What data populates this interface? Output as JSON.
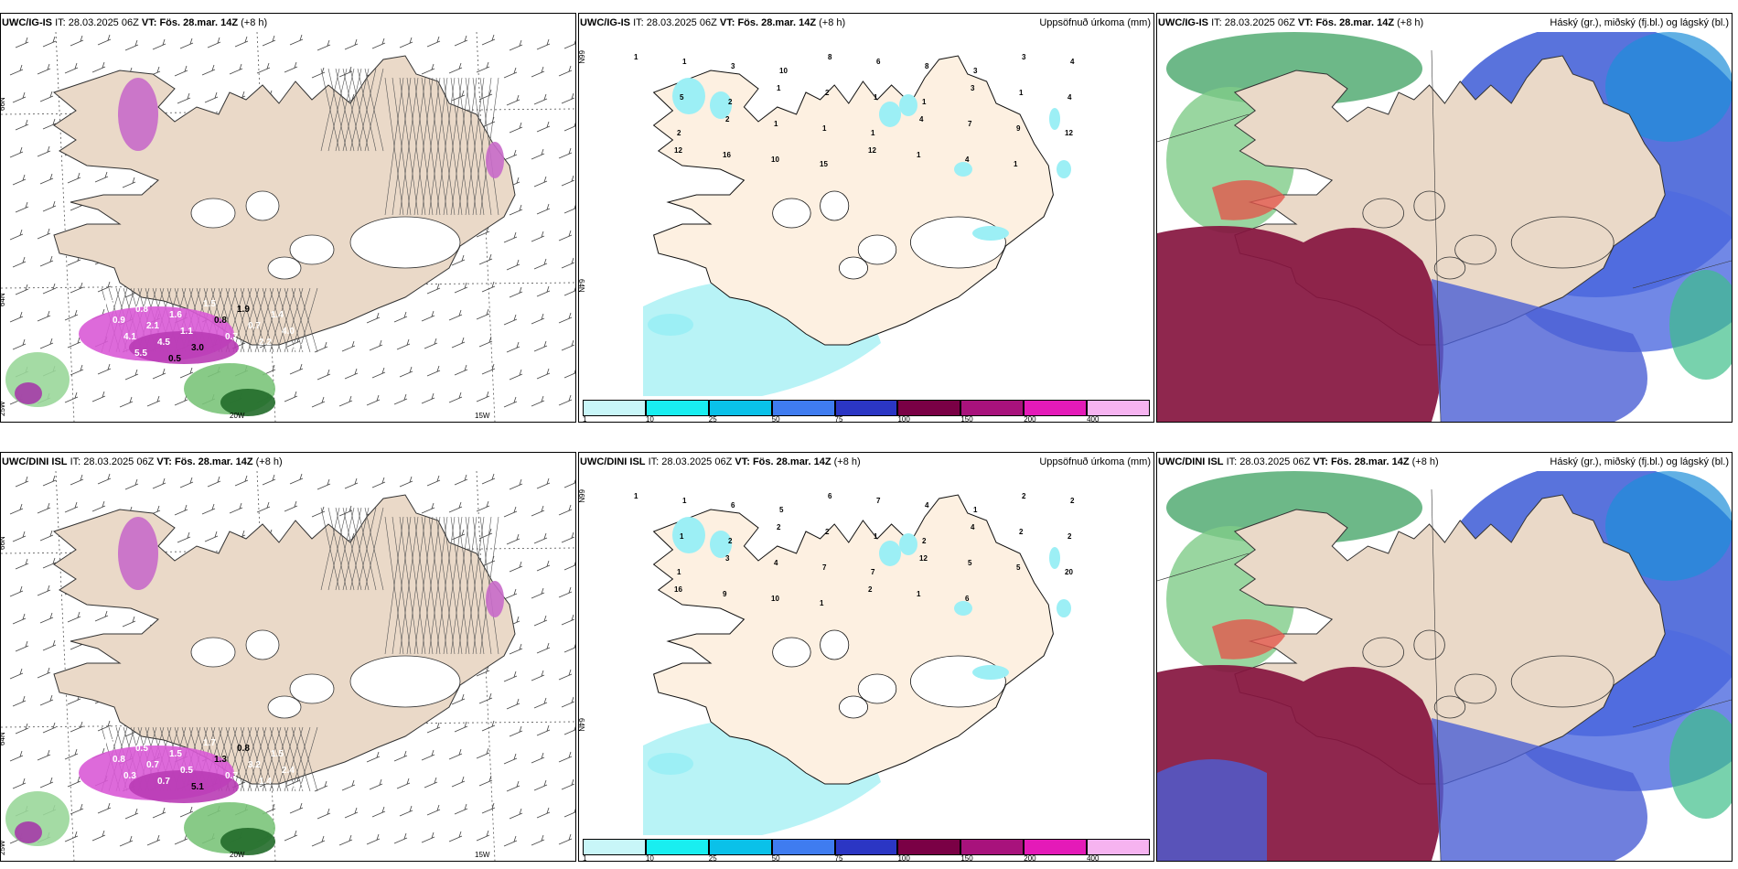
{
  "rows": [
    {
      "model": "UWC/IG-IS",
      "issue_label": "IT:",
      "issue_time": "28.03.2025 06Z",
      "valid_label": "VT:",
      "valid_time": "Fös. 28.mar. 14Z",
      "lead": "(+8 h)"
    },
    {
      "model": "UWC/DINI ISL",
      "issue_label": "IT:",
      "issue_time": "28.03.2025 06Z",
      "valid_label": "VT:",
      "valid_time": "Fös. 28.mar. 14Z",
      "lead": "(+8 h)"
    }
  ],
  "precip_title": "Uppsöfnuð úrkoma (mm)",
  "cloud_title": "Háský (gr.), miðský (fj.bl.) og lágský (bl.)",
  "lat_labels": [
    "66N",
    "64N"
  ],
  "lon_labels": [
    "25W",
    "20W",
    "15W"
  ],
  "precip_scale": {
    "ticks": [
      "1",
      "10",
      "25",
      "50",
      "75",
      "100",
      "150",
      "200",
      "400"
    ],
    "colors": [
      "#c8f6f8",
      "#19eef0",
      "#0ac1e9",
      "#3f7cf0",
      "#2b36c4",
      "#7a0045",
      "#a8127c",
      "#e41ab8",
      "#f6b3f0"
    ]
  },
  "wind_values_top": [
    "0.5",
    "0.8",
    "1.6",
    "1.5",
    "1.9",
    "1.4",
    "0.9",
    "2.1",
    "1.1",
    "0.8",
    "0.7",
    "4.0",
    "4.1",
    "4.5",
    "3.0",
    "0.7",
    "2.2",
    "0.7",
    "5.5",
    "0.5"
  ],
  "wind_values_bottom": [
    "0.5",
    "0.5",
    "1.5",
    "1.7",
    "0.8",
    "1.5",
    "0.8",
    "0.7",
    "0.5",
    "1.3",
    "3.2",
    "2.4",
    "0.3",
    "0.7",
    "5.1",
    "0.7",
    "1.4",
    "0.3"
  ],
  "precip_values_top": [
    "1",
    "1",
    "3",
    "10",
    "8",
    "6",
    "8",
    "3",
    "3",
    "4",
    "5",
    "2",
    "1",
    "2",
    "1",
    "1",
    "3",
    "1",
    "4",
    "2",
    "2",
    "1",
    "1",
    "1",
    "4",
    "7",
    "9",
    "12",
    "12",
    "16",
    "10",
    "15",
    "12",
    "1",
    "4",
    "1"
  ],
  "precip_values_bottom": [
    "1",
    "1",
    "6",
    "5",
    "6",
    "7",
    "4",
    "1",
    "2",
    "2",
    "1",
    "2",
    "2",
    "2",
    "1",
    "2",
    "4",
    "2",
    "2",
    "1",
    "3",
    "4",
    "7",
    "7",
    "12",
    "5",
    "5",
    "20",
    "16",
    "9",
    "10",
    "1",
    "2",
    "1",
    "6"
  ]
}
